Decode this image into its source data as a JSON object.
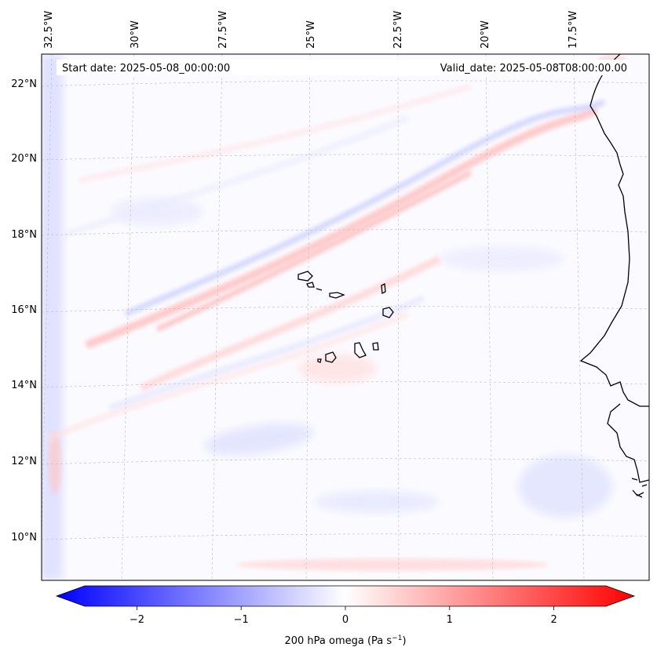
{
  "header": {
    "start_date": "Start date: 2025-05-08_00:00:00",
    "valid_date": "Valid_date: 2025-05-08T08:00:00.00"
  },
  "map": {
    "lon_labels": [
      "32.5°W",
      "30°W",
      "27.5°W",
      "25°W",
      "22.5°W",
      "20°W",
      "17.5°W"
    ],
    "lat_labels": [
      "22°N",
      "20°N",
      "18°N",
      "16°N",
      "14°N",
      "12°N",
      "10°N"
    ],
    "field": "200 hPa omega"
  },
  "colorbar": {
    "ticks": [
      "−2",
      "−1",
      "0",
      "1",
      "2"
    ],
    "tick_values": [
      -2,
      -1,
      0,
      1,
      2
    ],
    "range": [
      -2.5,
      2.5
    ],
    "label_main": "200 hPa omega (Pa s",
    "label_exp": "−1",
    "label_end": ")",
    "color_low": "#0000ff",
    "color_mid": "#ffffff",
    "color_high": "#ff0000"
  }
}
